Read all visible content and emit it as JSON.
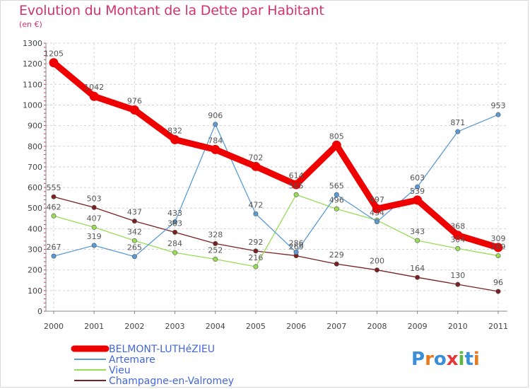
{
  "title": "Evolution du Montant de la Dette par Habitant",
  "subtitle": "(en €)",
  "logo_text": "Proxiti",
  "chart_data": {
    "type": "line",
    "categories": [
      "2000",
      "2001",
      "2002",
      "2003",
      "2004",
      "2005",
      "2006",
      "2007",
      "2008",
      "2009",
      "2010",
      "2011"
    ],
    "ylim": [
      0,
      1300
    ],
    "yticks": [
      0,
      100,
      200,
      300,
      400,
      500,
      600,
      700,
      800,
      900,
      1000,
      1100,
      1200,
      1300
    ],
    "grid": true,
    "legend_position": "bottom-left",
    "series": [
      {
        "name": "BELMONT-LUTHéZIEU",
        "color": "#ee0000",
        "values": [
          1205,
          1042,
          976,
          832,
          784,
          702,
          614,
          805,
          497,
          539,
          368,
          309
        ],
        "labels": [
          "1205",
          "1042",
          "976",
          "832",
          "784",
          "702",
          "614",
          "805",
          "497",
          "539",
          "368",
          "309"
        ]
      },
      {
        "name": "Artemare",
        "color": "#5b9bd5",
        "values": [
          267,
          319,
          265,
          433,
          906,
          472,
          286,
          565,
          434,
          603,
          871,
          953
        ],
        "labels": [
          "267",
          "319",
          "265",
          "433",
          "906",
          "472",
          "286",
          "565",
          "434",
          "603",
          "871",
          "953"
        ]
      },
      {
        "name": "Vieu",
        "color": "#99dd55",
        "values": [
          462,
          407,
          342,
          284,
          252,
          216,
          565,
          496,
          441,
          343,
          304,
          269
        ],
        "labels": [
          "462",
          "407",
          "342",
          "284",
          "252",
          "216",
          "565",
          "496",
          "",
          "343",
          "304",
          "269"
        ]
      },
      {
        "name": "Champagne-en-Valromey",
        "color": "#7a2020",
        "values": [
          555,
          503,
          437,
          383,
          328,
          292,
          269,
          229,
          200,
          164,
          130,
          96
        ],
        "labels": [
          "555",
          "503",
          "437",
          "383",
          "328",
          "292",
          "269",
          "229",
          "200",
          "164",
          "130",
          "96"
        ]
      }
    ]
  }
}
